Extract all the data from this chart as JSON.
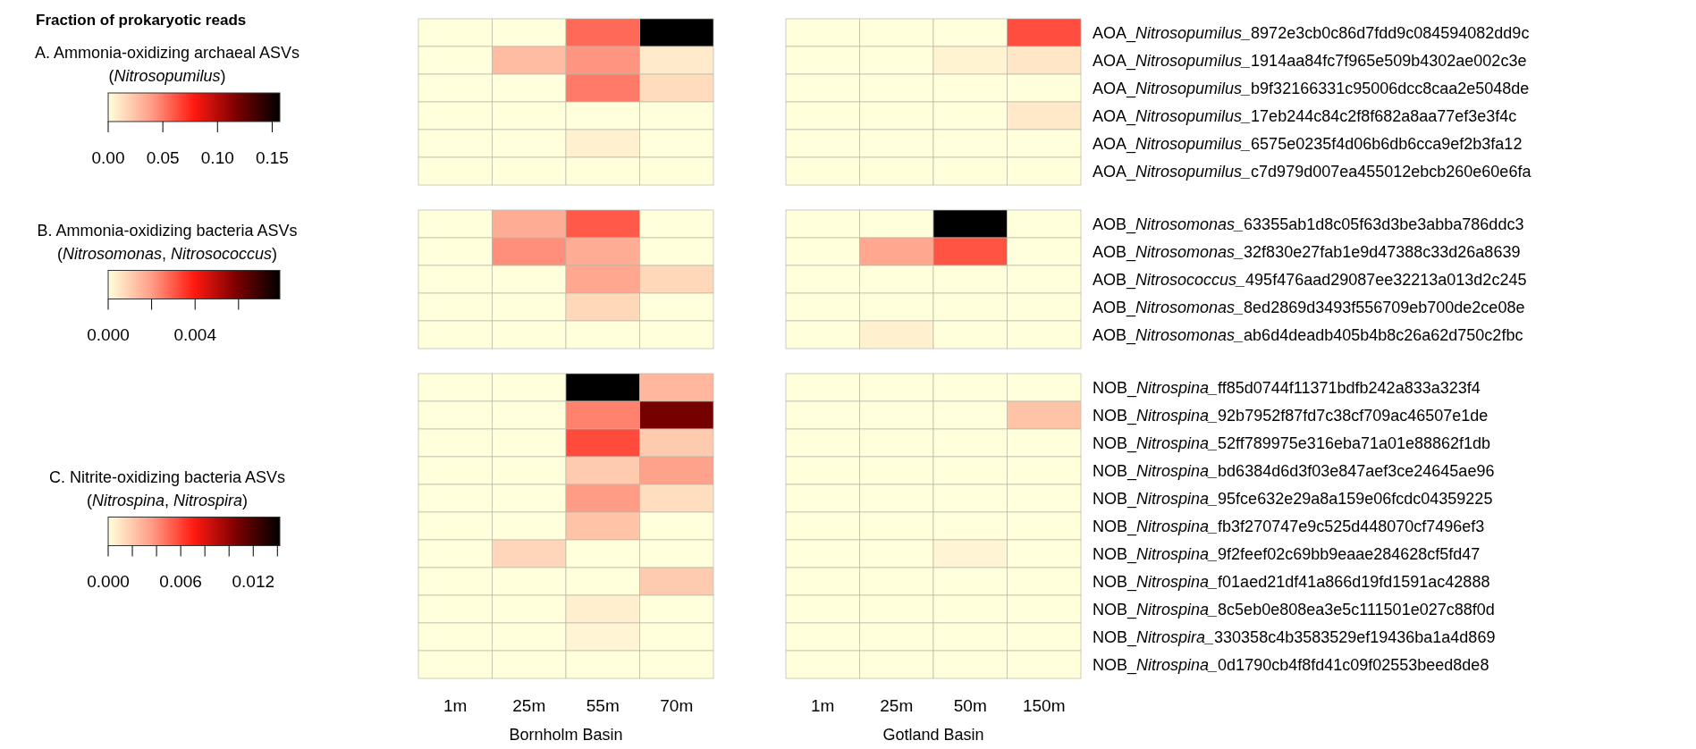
{
  "chart_data": [
    {
      "type": "heatmap",
      "legend_title": "Fraction of prokaryotic reads",
      "clabel": "A. Ammonia-oxidizing archaeal ASVs (Nitrosopumilus)",
      "categories": [
        null,
        null,
        null,
        null,
        null,
        null,
        null,
        null
      ],
      "y_categories": [
        "AOA_Nitrosopumilus_8972e3cb0c86d7fdd9c084594082dd9c",
        "AOA_Nitrosopumilus_1914aa84fc7f965e509b4302ae002c3e",
        "AOA_Nitrosopumilus_b9f32166331c95006dcc8caa2e5048de",
        "AOA_Nitrosopumilus_17eb244c84c2f8f682a8aa77ef3e3f4c",
        "AOA_Nitrosopumilus_6575e0235f4d06b6db6cca9ef2b3fa12",
        "AOA_Nitrosopumilus_c7d979d007ea455012ebcb260e60e6fa"
      ],
      "cells": [
        [
          0,
          0,
          0.055,
          0.157,
          0,
          0,
          0,
          0.063
        ],
        [
          0,
          0.027,
          0.042,
          0.008,
          0,
          0,
          0.005,
          0.01
        ],
        [
          0,
          0,
          0.05,
          0.014,
          0,
          0,
          0,
          0
        ],
        [
          0,
          0,
          0,
          0,
          0,
          0,
          0,
          0.009
        ],
        [
          0,
          0,
          0.006,
          0,
          0,
          0,
          0,
          0
        ],
        [
          0,
          0,
          0,
          0,
          0,
          0,
          0,
          0
        ]
      ],
      "clim": [
        0,
        0.157
      ],
      "cticks": [
        {
          "value": 0,
          "label": "0.00"
        },
        0.05,
        {
          "value": 0.1,
          "label": "0.10"
        },
        0.15
      ],
      "tick_labels": "y"
    },
    {
      "type": "heatmap",
      "clabel": "B. Ammonia-oxidizing bacteria ASVs (Nitrosomonas, Nitrosococcus)",
      "categories": [
        null,
        null,
        null,
        null,
        null,
        null,
        null,
        null
      ],
      "y_categories": [
        "AOB_Nitrosomonas_63355ab1d8c05f63d3be3abba786ddc3",
        "AOB_Nitrosomonas_32f830e27fab1e9d47388c33d26a8639",
        "AOB_Nitrosococcus_495f476aad29087ee32213a013d2c245",
        "AOB_Nitrosomonas_8ed2869d3493f556709eb700de2ce08e",
        "AOB_Nitrosomonas_ab6d4deadb405b4b8c26a62d750c2fbc"
      ],
      "cells": [
        [
          0,
          0.0017,
          0.003,
          0,
          0,
          0,
          0.0079,
          0
        ],
        [
          0,
          0.0022,
          0.0017,
          0,
          0,
          0.0018,
          0.0031,
          0
        ],
        [
          0,
          0,
          0.0018,
          0.0008,
          0,
          0,
          0,
          0
        ],
        [
          0,
          0,
          0.0008,
          0,
          0,
          0,
          0,
          0
        ],
        [
          0,
          0,
          0,
          0,
          0,
          0.0003,
          0,
          0
        ]
      ],
      "clim": [
        0,
        0.0079
      ],
      "cticks": [
        {
          "value": 0,
          "label": "0.000"
        },
        {
          "value": 0.002,
          "label": null
        },
        0.004,
        {
          "value": 0.006,
          "label": null
        }
      ],
      "tick_labels": "y"
    },
    {
      "type": "heatmap",
      "clabel": "C. Nitrite-oxidizing bacteria ASVs (Nitrospina, Nitrospira)",
      "annotations": [
        "Bornholm Basin",
        "Gotland Basin"
      ],
      "categories": [
        "1m",
        "25m",
        "55m",
        "70m",
        "1m",
        "25m",
        "50m",
        "150m"
      ],
      "y_categories": [
        "NOB_Nitrospina_ff85d0744f11371bdfb242a833a323f4",
        "NOB_Nitrospina_92b7952f87fd7c38cf709ac46507e1de",
        "NOB_Nitrospina_52ff789975e316eba71a01e88862f1db",
        "NOB_Nitrospina_bd6384d6d3f03e847aef3ce24645ae96",
        "NOB_Nitrospina_95fce632e29a8a159e06fcdc04359225",
        "NOB_Nitrospina_fb3f270747e9c525d448070cf7496ef3",
        "NOB_Nitrospina_9f2feef02c69bb9eaae284628cf5fd47",
        "NOB_Nitrospina_f01aed21df41a866d19fd1591ac42888",
        "NOB_Nitrospina_8c5eb0e808ea3e5c111501e027c88f0d",
        "NOB_Nitrospira_330358c4b3583529ef19436ba1a4d869",
        "NOB_Nitrospina_0d1790cb4f8fd41c09f02553beed8de8"
      ],
      "cells": [
        [
          0,
          0,
          0.0142,
          0.0026,
          0,
          0,
          0,
          0
        ],
        [
          0,
          0,
          0.0043,
          0.0108,
          0,
          0,
          0,
          0.0022
        ],
        [
          0,
          0,
          0.0058,
          0.0019,
          0,
          0,
          0,
          0
        ],
        [
          0,
          0,
          0.0019,
          0.0034,
          0,
          0,
          0,
          0
        ],
        [
          0,
          0,
          0.0036,
          0.0012,
          0,
          0,
          0,
          0
        ],
        [
          0,
          0,
          0.0022,
          0,
          0,
          0,
          0,
          0
        ],
        [
          0,
          0.0015,
          0,
          0,
          0,
          0,
          0.0004,
          0
        ],
        [
          0,
          0,
          0,
          0.0019,
          0,
          0,
          0,
          0
        ],
        [
          0,
          0,
          0.0006,
          0,
          0,
          0,
          0,
          0
        ],
        [
          0,
          0,
          0.0004,
          0,
          0,
          0,
          0,
          0
        ],
        [
          0,
          0,
          0,
          0,
          0,
          0,
          0,
          0
        ]
      ],
      "clim": [
        0,
        0.0142
      ],
      "cticks": [
        {
          "value": 0,
          "label": "0.000"
        },
        {
          "value": 0.002,
          "label": null
        },
        {
          "value": 0.004,
          "label": null
        },
        0.006,
        {
          "value": 0.008,
          "label": null
        },
        {
          "value": 0.01,
          "label": null
        },
        0.012,
        {
          "value": 0.014,
          "label": null
        }
      ]
    }
  ]
}
